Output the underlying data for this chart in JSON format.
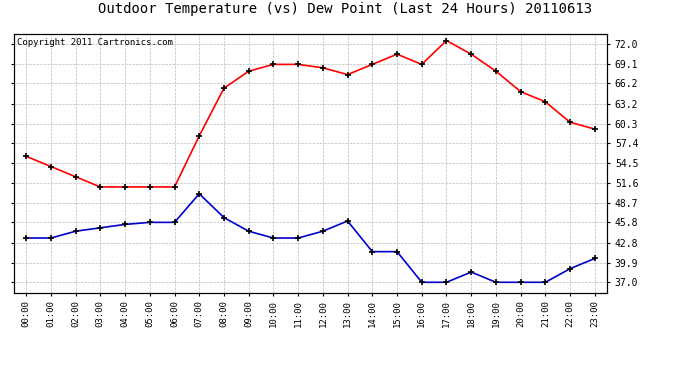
{
  "title": "Outdoor Temperature (vs) Dew Point (Last 24 Hours) 20110613",
  "copyright_text": "Copyright 2011 Cartronics.com",
  "hours": [
    "00:00",
    "01:00",
    "02:00",
    "03:00",
    "04:00",
    "05:00",
    "06:00",
    "07:00",
    "08:00",
    "09:00",
    "10:00",
    "11:00",
    "12:00",
    "13:00",
    "14:00",
    "15:00",
    "16:00",
    "17:00",
    "18:00",
    "19:00",
    "20:00",
    "21:00",
    "22:00",
    "23:00"
  ],
  "temp_red": [
    55.5,
    54.0,
    52.5,
    51.0,
    51.0,
    51.0,
    51.0,
    58.5,
    65.5,
    68.0,
    69.0,
    69.0,
    68.5,
    67.5,
    69.0,
    70.5,
    69.0,
    72.5,
    70.5,
    68.0,
    65.0,
    63.5,
    60.5,
    59.5
  ],
  "dew_blue": [
    43.5,
    43.5,
    44.5,
    45.0,
    45.5,
    45.8,
    45.8,
    50.0,
    46.5,
    44.5,
    43.5,
    43.5,
    44.5,
    46.0,
    41.5,
    41.5,
    37.0,
    37.0,
    38.5,
    37.0,
    37.0,
    37.0,
    39.0,
    40.5
  ],
  "y_ticks": [
    37.0,
    39.9,
    42.8,
    45.8,
    48.7,
    51.6,
    54.5,
    57.4,
    60.3,
    63.2,
    66.2,
    69.1,
    72.0
  ],
  "ymin": 35.5,
  "ymax": 73.5,
  "red_color": "#ff0000",
  "blue_color": "#0000cc",
  "background_color": "#ffffff",
  "grid_color": "#bbbbbb",
  "title_fontsize": 10,
  "copyright_fontsize": 6.5
}
